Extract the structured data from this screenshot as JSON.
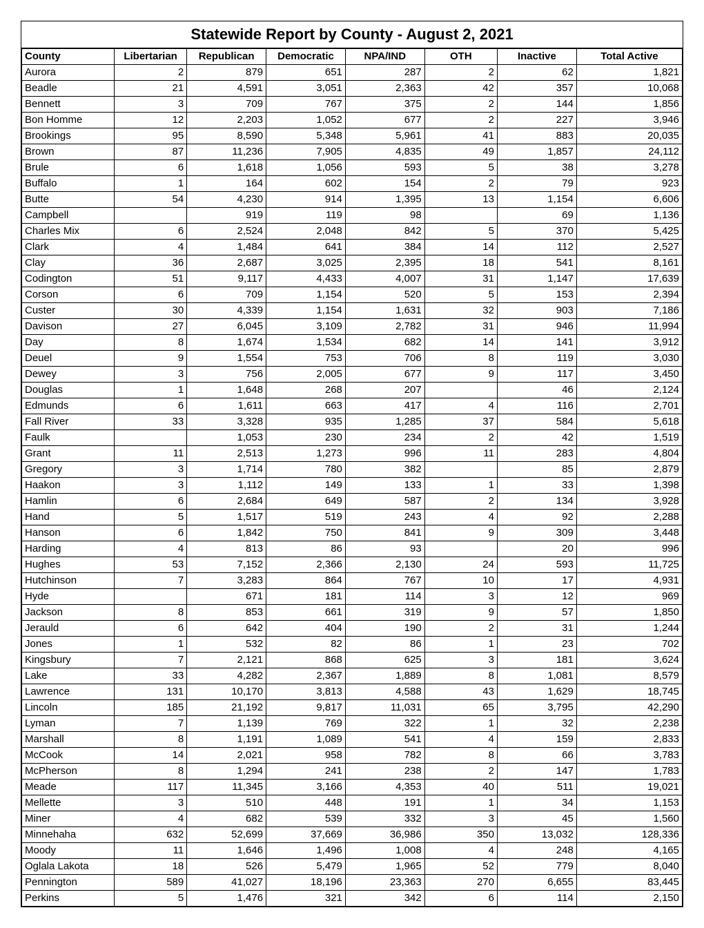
{
  "report": {
    "title": "Statewide Report by County - August 2, 2021",
    "columns": [
      "County",
      "Libertarian",
      "Republican",
      "Democratic",
      "NPA/IND",
      "OTH",
      "Inactive",
      "Total Active"
    ],
    "rows": [
      [
        "Aurora",
        "2",
        "879",
        "651",
        "287",
        "2",
        "62",
        "1,821"
      ],
      [
        "Beadle",
        "21",
        "4,591",
        "3,051",
        "2,363",
        "42",
        "357",
        "10,068"
      ],
      [
        "Bennett",
        "3",
        "709",
        "767",
        "375",
        "2",
        "144",
        "1,856"
      ],
      [
        "Bon Homme",
        "12",
        "2,203",
        "1,052",
        "677",
        "2",
        "227",
        "3,946"
      ],
      [
        "Brookings",
        "95",
        "8,590",
        "5,348",
        "5,961",
        "41",
        "883",
        "20,035"
      ],
      [
        "Brown",
        "87",
        "11,236",
        "7,905",
        "4,835",
        "49",
        "1,857",
        "24,112"
      ],
      [
        "Brule",
        "6",
        "1,618",
        "1,056",
        "593",
        "5",
        "38",
        "3,278"
      ],
      [
        "Buffalo",
        "1",
        "164",
        "602",
        "154",
        "2",
        "79",
        "923"
      ],
      [
        "Butte",
        "54",
        "4,230",
        "914",
        "1,395",
        "13",
        "1,154",
        "6,606"
      ],
      [
        "Campbell",
        "",
        "919",
        "119",
        "98",
        "",
        "69",
        "1,136"
      ],
      [
        "Charles Mix",
        "6",
        "2,524",
        "2,048",
        "842",
        "5",
        "370",
        "5,425"
      ],
      [
        "Clark",
        "4",
        "1,484",
        "641",
        "384",
        "14",
        "112",
        "2,527"
      ],
      [
        "Clay",
        "36",
        "2,687",
        "3,025",
        "2,395",
        "18",
        "541",
        "8,161"
      ],
      [
        "Codington",
        "51",
        "9,117",
        "4,433",
        "4,007",
        "31",
        "1,147",
        "17,639"
      ],
      [
        "Corson",
        "6",
        "709",
        "1,154",
        "520",
        "5",
        "153",
        "2,394"
      ],
      [
        "Custer",
        "30",
        "4,339",
        "1,154",
        "1,631",
        "32",
        "903",
        "7,186"
      ],
      [
        "Davison",
        "27",
        "6,045",
        "3,109",
        "2,782",
        "31",
        "946",
        "11,994"
      ],
      [
        "Day",
        "8",
        "1,674",
        "1,534",
        "682",
        "14",
        "141",
        "3,912"
      ],
      [
        "Deuel",
        "9",
        "1,554",
        "753",
        "706",
        "8",
        "119",
        "3,030"
      ],
      [
        "Dewey",
        "3",
        "756",
        "2,005",
        "677",
        "9",
        "117",
        "3,450"
      ],
      [
        "Douglas",
        "1",
        "1,648",
        "268",
        "207",
        "",
        "46",
        "2,124"
      ],
      [
        "Edmunds",
        "6",
        "1,611",
        "663",
        "417",
        "4",
        "116",
        "2,701"
      ],
      [
        "Fall River",
        "33",
        "3,328",
        "935",
        "1,285",
        "37",
        "584",
        "5,618"
      ],
      [
        "Faulk",
        "",
        "1,053",
        "230",
        "234",
        "2",
        "42",
        "1,519"
      ],
      [
        "Grant",
        "11",
        "2,513",
        "1,273",
        "996",
        "11",
        "283",
        "4,804"
      ],
      [
        "Gregory",
        "3",
        "1,714",
        "780",
        "382",
        "",
        "85",
        "2,879"
      ],
      [
        "Haakon",
        "3",
        "1,112",
        "149",
        "133",
        "1",
        "33",
        "1,398"
      ],
      [
        "Hamlin",
        "6",
        "2,684",
        "649",
        "587",
        "2",
        "134",
        "3,928"
      ],
      [
        "Hand",
        "5",
        "1,517",
        "519",
        "243",
        "4",
        "92",
        "2,288"
      ],
      [
        "Hanson",
        "6",
        "1,842",
        "750",
        "841",
        "9",
        "309",
        "3,448"
      ],
      [
        "Harding",
        "4",
        "813",
        "86",
        "93",
        "",
        "20",
        "996"
      ],
      [
        "Hughes",
        "53",
        "7,152",
        "2,366",
        "2,130",
        "24",
        "593",
        "11,725"
      ],
      [
        "Hutchinson",
        "7",
        "3,283",
        "864",
        "767",
        "10",
        "17",
        "4,931"
      ],
      [
        "Hyde",
        "",
        "671",
        "181",
        "114",
        "3",
        "12",
        "969"
      ],
      [
        "Jackson",
        "8",
        "853",
        "661",
        "319",
        "9",
        "57",
        "1,850"
      ],
      [
        "Jerauld",
        "6",
        "642",
        "404",
        "190",
        "2",
        "31",
        "1,244"
      ],
      [
        "Jones",
        "1",
        "532",
        "82",
        "86",
        "1",
        "23",
        "702"
      ],
      [
        "Kingsbury",
        "7",
        "2,121",
        "868",
        "625",
        "3",
        "181",
        "3,624"
      ],
      [
        "Lake",
        "33",
        "4,282",
        "2,367",
        "1,889",
        "8",
        "1,081",
        "8,579"
      ],
      [
        "Lawrence",
        "131",
        "10,170",
        "3,813",
        "4,588",
        "43",
        "1,629",
        "18,745"
      ],
      [
        "Lincoln",
        "185",
        "21,192",
        "9,817",
        "11,031",
        "65",
        "3,795",
        "42,290"
      ],
      [
        "Lyman",
        "7",
        "1,139",
        "769",
        "322",
        "1",
        "32",
        "2,238"
      ],
      [
        "Marshall",
        "8",
        "1,191",
        "1,089",
        "541",
        "4",
        "159",
        "2,833"
      ],
      [
        "McCook",
        "14",
        "2,021",
        "958",
        "782",
        "8",
        "66",
        "3,783"
      ],
      [
        "McPherson",
        "8",
        "1,294",
        "241",
        "238",
        "2",
        "147",
        "1,783"
      ],
      [
        "Meade",
        "117",
        "11,345",
        "3,166",
        "4,353",
        "40",
        "511",
        "19,021"
      ],
      [
        "Mellette",
        "3",
        "510",
        "448",
        "191",
        "1",
        "34",
        "1,153"
      ],
      [
        "Miner",
        "4",
        "682",
        "539",
        "332",
        "3",
        "45",
        "1,560"
      ],
      [
        "Minnehaha",
        "632",
        "52,699",
        "37,669",
        "36,986",
        "350",
        "13,032",
        "128,336"
      ],
      [
        "Moody",
        "11",
        "1,646",
        "1,496",
        "1,008",
        "4",
        "248",
        "4,165"
      ],
      [
        "Oglala Lakota",
        "18",
        "526",
        "5,479",
        "1,965",
        "52",
        "779",
        "8,040"
      ],
      [
        "Pennington",
        "589",
        "41,027",
        "18,196",
        "23,363",
        "270",
        "6,655",
        "83,445"
      ],
      [
        "Perkins",
        "5",
        "1,476",
        "321",
        "342",
        "6",
        "114",
        "2,150"
      ]
    ]
  }
}
